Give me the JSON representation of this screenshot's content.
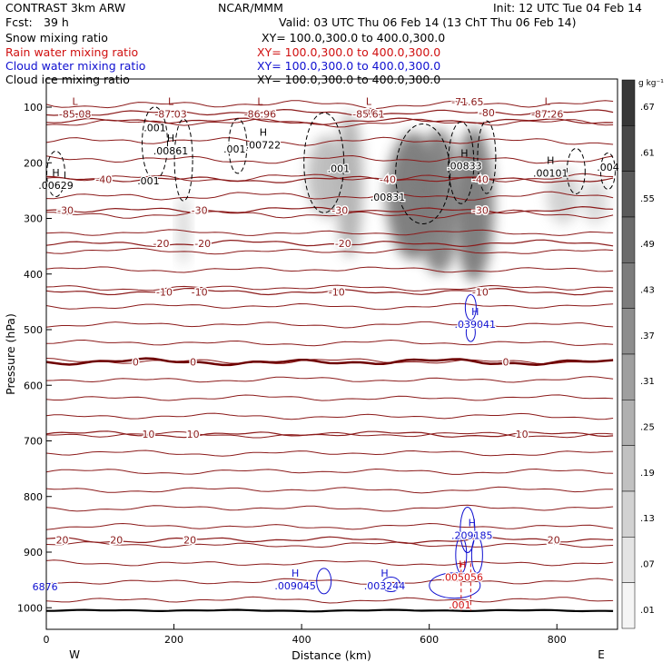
{
  "header": {
    "title_left": "CONTRAST  3km ARW",
    "title_center": "NCAR/MMM",
    "init": "Init: 12 UTC Tue 04 Feb 14",
    "fcst_label": "Fcst:",
    "fcst_value": "39 h",
    "valid": "Valid: 03 UTC Thu 06 Feb 14 (13 ChT Thu 06 Feb 14)",
    "fields": [
      {
        "name": "Snow mixing ratio",
        "xy": "XY= 100.0,300.0 to 400.0,300.0",
        "color": "#000000"
      },
      {
        "name": "Rain water mixing ratio",
        "xy": "XY= 100.0,300.0 to 400.0,300.0",
        "color": "#d01010"
      },
      {
        "name": "Cloud water mixing ratio",
        "xy": "XY= 100.0,300.0 to 400.0,300.0",
        "color": "#1010d0"
      },
      {
        "name": "Cloud ice mixing ratio",
        "xy": "XY= 100.0,300.0 to 400.0,300.0",
        "color": "#000000"
      }
    ]
  },
  "chart_data": {
    "type": "heatmap",
    "xlabel": "Distance (km)",
    "ylabel": "Pressure (hPa)",
    "xlim": [
      0,
      895
    ],
    "ylim": [
      1045,
      65
    ],
    "x_ticks": [
      0,
      200,
      400,
      600,
      800
    ],
    "y_ticks": [
      100,
      200,
      300,
      400,
      500,
      600,
      700,
      800,
      900,
      1000
    ],
    "x_end_labels": {
      "left": "W",
      "right": "E"
    },
    "colorbar": {
      "unit": "g kg⁻¹",
      "labels": [
        ".67",
        ".61",
        ".55",
        ".49",
        ".43",
        ".37",
        ".31",
        ".25",
        ".19",
        ".13",
        ".07",
        ".01"
      ]
    },
    "temperature_contours": [
      {
        "p": 110,
        "label": "-80",
        "x": [
          505,
          690
        ]
      },
      {
        "p": 125,
        "label": "-70",
        "x": []
      },
      {
        "p": 230,
        "label": "-40",
        "x": [
          90,
          535,
          680
        ]
      },
      {
        "p": 285,
        "label": "-30",
        "x": [
          30,
          240,
          460,
          680
        ]
      },
      {
        "p": 345,
        "label": "-20",
        "x": [
          180,
          245,
          465
        ]
      },
      {
        "p": 432,
        "label": "-10",
        "x": [
          185,
          240,
          455,
          680
        ]
      },
      {
        "p": 558,
        "label": "0",
        "x": [
          140,
          230,
          720
        ],
        "bold": true
      },
      {
        "p": 688,
        "label": "10",
        "x": [
          160,
          230,
          745
        ]
      },
      {
        "p": 878,
        "label": "20",
        "x": [
          25,
          110,
          225,
          795
        ]
      }
    ],
    "extrema_labels": [
      {
        "kind": "H",
        "value": ".00629",
        "x": 15,
        "p": 240,
        "color": "black"
      },
      {
        "kind": "L",
        "value": "-85.08",
        "x": 45,
        "p": 112,
        "color": "darkred"
      },
      {
        "kind": "L",
        "value": "-87.03",
        "x": 195,
        "p": 112,
        "color": "darkred"
      },
      {
        "kind": "L",
        "value": "-86.96",
        "x": 335,
        "p": 112,
        "color": "darkred"
      },
      {
        "kind": "L",
        "value": "-85.61",
        "x": 505,
        "p": 112,
        "color": "darkred"
      },
      {
        "kind": "L",
        "value": "-87.26",
        "x": 785,
        "p": 112,
        "color": "darkred"
      },
      {
        "kind": "",
        "value": "-71.65",
        "x": 660,
        "p": 90,
        "color": "darkred"
      },
      {
        "kind": "",
        "value": ".001",
        "x": 170,
        "p": 137,
        "color": "black"
      },
      {
        "kind": "H",
        "value": ".00861",
        "x": 195,
        "p": 178,
        "color": "black"
      },
      {
        "kind": "",
        "value": ".001",
        "x": 295,
        "p": 175,
        "color": "black"
      },
      {
        "kind": "H",
        "value": ".00722",
        "x": 340,
        "p": 168,
        "color": "black"
      },
      {
        "kind": "",
        "value": ".001",
        "x": 160,
        "p": 232,
        "color": "black"
      },
      {
        "kind": "",
        "value": ".001",
        "x": 458,
        "p": 210,
        "color": "black"
      },
      {
        "kind": "H",
        "value": ".00833",
        "x": 655,
        "p": 205,
        "color": "black"
      },
      {
        "kind": "",
        "value": ".00831",
        "x": 535,
        "p": 262,
        "color": "black"
      },
      {
        "kind": "H",
        "value": ".00101",
        "x": 790,
        "p": 218,
        "color": "black"
      },
      {
        "kind": "",
        "value": ".004",
        "x": 880,
        "p": 208,
        "color": "black"
      },
      {
        "kind": "H",
        "value": ".039041",
        "x": 672,
        "p": 490,
        "color": "blue"
      },
      {
        "kind": "H",
        "value": ".209185",
        "x": 667,
        "p": 870,
        "color": "blue"
      },
      {
        "kind": "H",
        "value": ".005056",
        "x": 652,
        "p": 945,
        "color": "red"
      },
      {
        "kind": "",
        "value": ".001",
        "x": 648,
        "p": 995,
        "color": "red"
      },
      {
        "kind": "H",
        "value": ".009045",
        "x": 390,
        "p": 960,
        "color": "blue"
      },
      {
        "kind": "H",
        "value": ".003244",
        "x": 530,
        "p": 960,
        "color": "blue"
      },
      {
        "kind": "",
        "value": "6876",
        "x": -2,
        "p": 962,
        "color": "blue"
      }
    ],
    "snow_shading": [
      {
        "x": 215,
        "p": 320,
        "rx": 6,
        "ry": 40,
        "v": 0.25
      },
      {
        "x": 440,
        "p": 225,
        "rx": 22,
        "ry": 45,
        "v": 0.35
      },
      {
        "x": 475,
        "p": 240,
        "rx": 15,
        "ry": 80,
        "v": 0.4
      },
      {
        "x": 575,
        "p": 260,
        "rx": 30,
        "ry": 70,
        "v": 0.7
      },
      {
        "x": 615,
        "p": 270,
        "rx": 25,
        "ry": 80,
        "v": 0.65
      },
      {
        "x": 670,
        "p": 275,
        "rx": 22,
        "ry": 85,
        "v": 0.7
      },
      {
        "x": 810,
        "p": 260,
        "rx": 18,
        "ry": 30,
        "v": 0.25
      },
      {
        "x": 860,
        "p": 270,
        "rx": 14,
        "ry": 25,
        "v": 0.2
      }
    ]
  }
}
